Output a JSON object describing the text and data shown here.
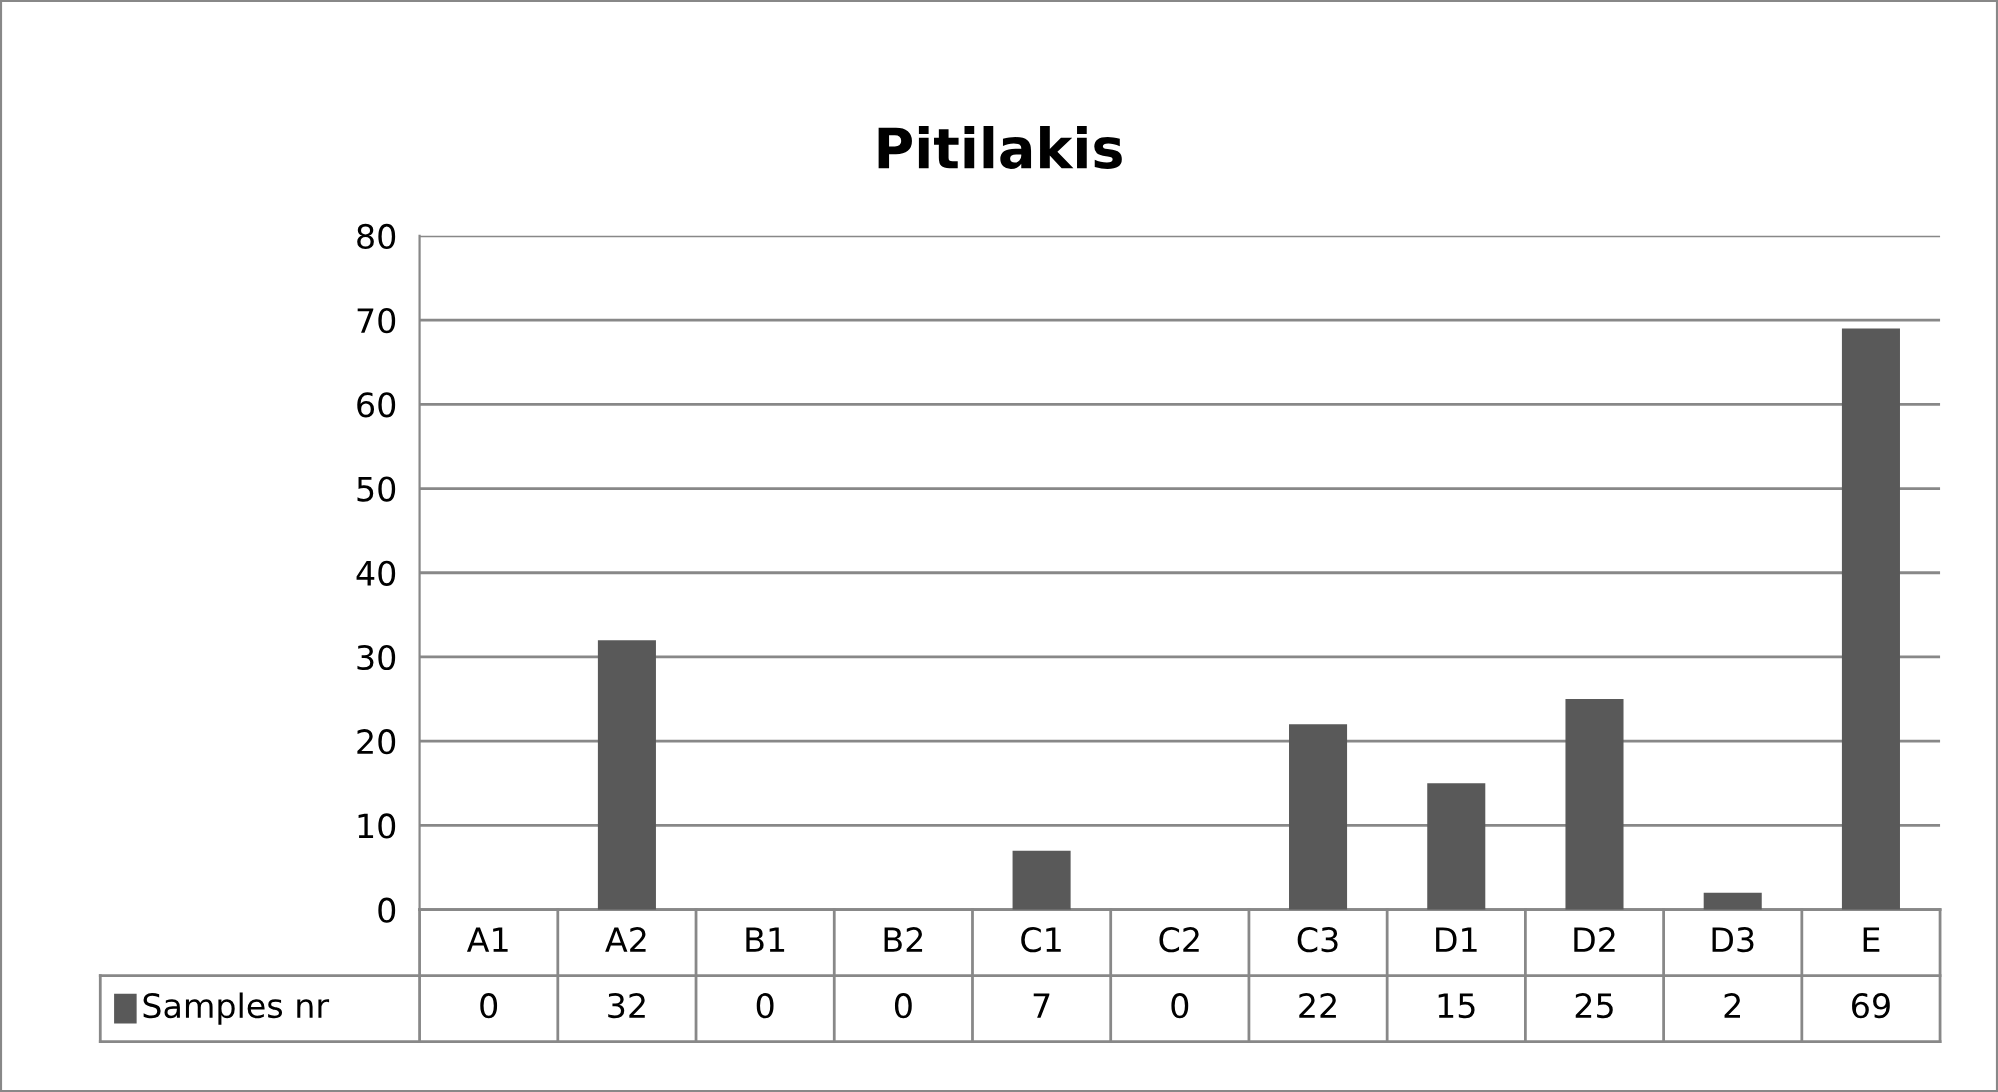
{
  "chart_data": {
    "type": "bar",
    "title": "Pitilakis",
    "categories": [
      "A1",
      "A2",
      "B1",
      "B2",
      "C1",
      "C2",
      "C3",
      "D1",
      "D2",
      "D3",
      "E"
    ],
    "series": [
      {
        "name": "Samples nr",
        "color": "#595959",
        "values": [
          0,
          32,
          0,
          0,
          7,
          0,
          22,
          15,
          25,
          2,
          69
        ]
      }
    ],
    "ylim": [
      0,
      80
    ],
    "yticks": [
      0,
      10,
      20,
      30,
      40,
      50,
      60,
      70,
      80
    ],
    "grid": "y",
    "legend": "bottom",
    "data_labels": true
  }
}
